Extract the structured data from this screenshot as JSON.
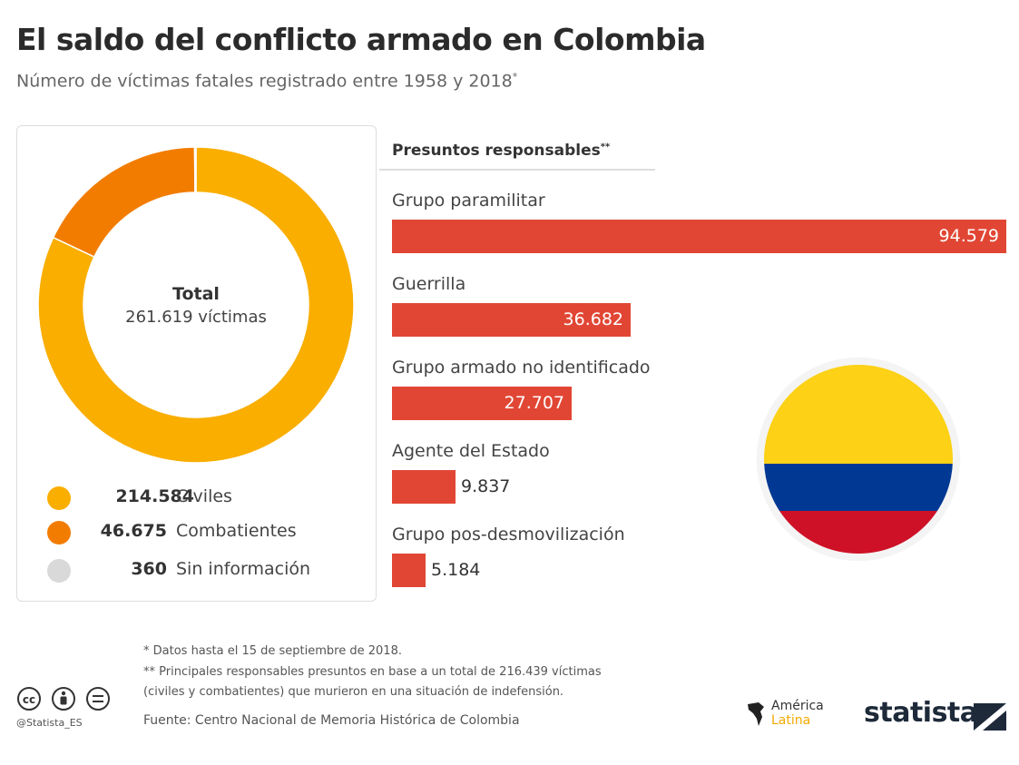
{
  "header": {
    "title": "El saldo del conflicto armado en Colombia",
    "subtitle": "Número de víctimas fatales registrado entre 1958 y 2018",
    "subtitle_mark": "*"
  },
  "donut": {
    "total_label": "Total",
    "total_value": "261.619 víctimas",
    "legend": [
      {
        "value": "214.584",
        "label": "Civiles",
        "color": "#f9ae00"
      },
      {
        "value": "46.675",
        "label": "Combatientes",
        "color": "#f27c00"
      },
      {
        "value": "360",
        "label": "Sin información",
        "color": "#d9d9d9"
      }
    ]
  },
  "responsables": {
    "title": "Presuntos responsables",
    "title_mark": "**"
  },
  "chart_data": [
    {
      "type": "pie",
      "categories": [
        "Civiles",
        "Combatientes",
        "Sin información"
      ],
      "values": [
        214584,
        46675,
        360
      ]
    },
    {
      "type": "bar",
      "title": "Presuntos responsables",
      "categories": [
        "Grupo paramilitar",
        "Guerrilla",
        "Grupo armado no identificado",
        "Agente del Estado",
        "Grupo pos-desmovilización"
      ],
      "values": [
        94579,
        36682,
        27707,
        9837,
        5184
      ],
      "value_labels": [
        "94.579",
        "36.682",
        "27.707",
        "9.837",
        "5.184"
      ]
    }
  ],
  "footer": {
    "note1": "*   Datos hasta el 15 de septiembre de 2018.",
    "note2": "** Principales responsables presuntos en base a un total de 216.439 víctimas",
    "note3": "    (civiles y combatientes) que murieron en una situación de indefensión.",
    "source": "Fuente: Centro Nacional de Memoria Histórica de Colombia",
    "handle": "@Statista_ES",
    "logo_al_line1": "América",
    "logo_al_line2": "Latina",
    "brand": "statista"
  },
  "colors": {
    "bar": "#e14634",
    "flag_yellow": "#fcd116",
    "flag_blue": "#003893",
    "flag_red": "#ce1126"
  }
}
